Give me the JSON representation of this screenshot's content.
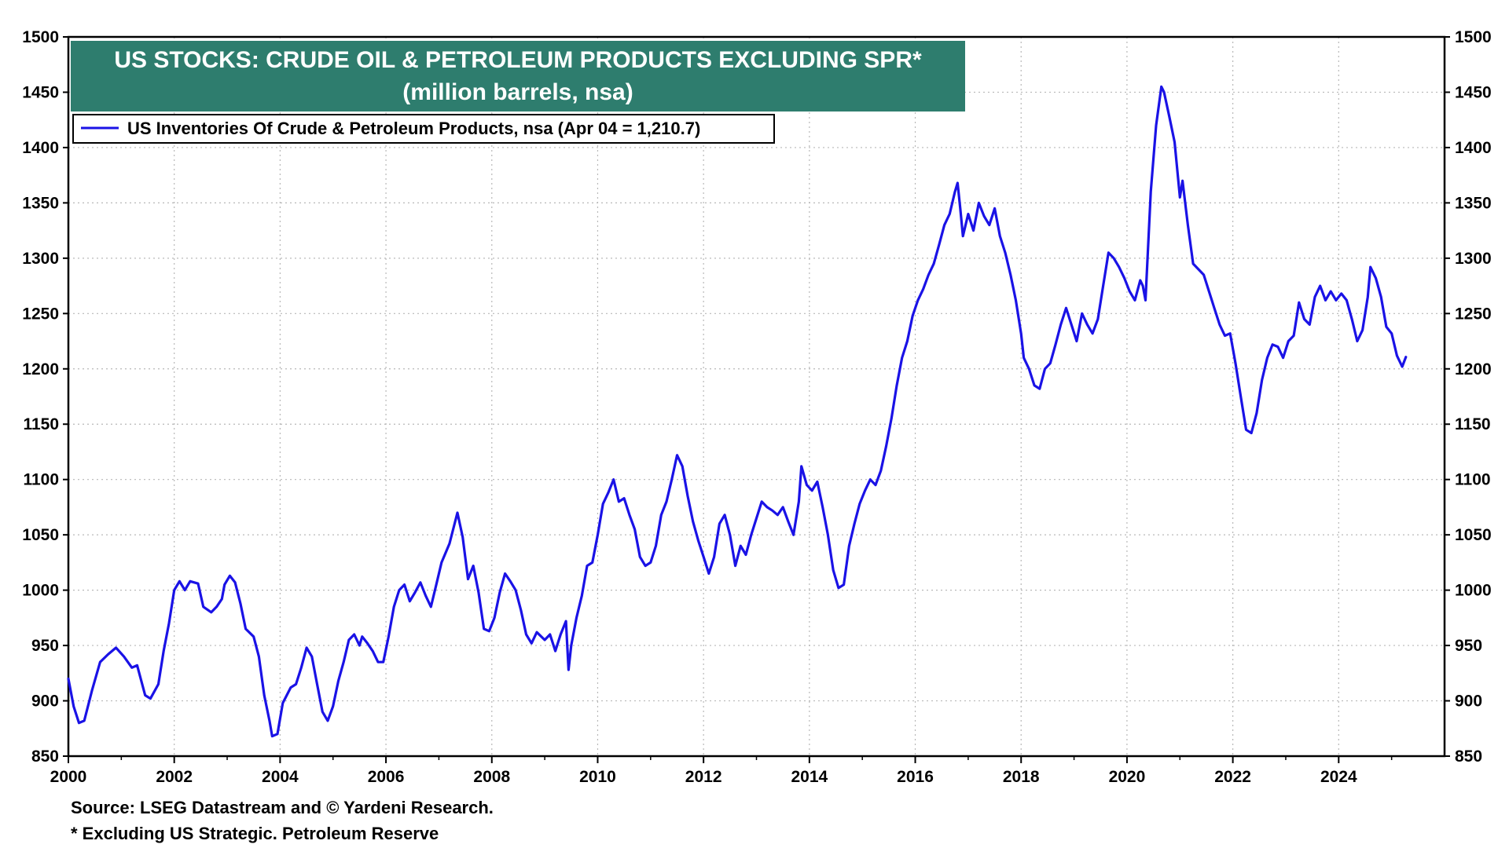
{
  "chart_data": {
    "type": "line",
    "title": "US STOCKS: CRUDE OIL & PETROLEUM PRODUCTS EXCLUDING SPR*",
    "subtitle": "(million barrels, nsa)",
    "xlabel": "",
    "ylabel": "",
    "xlim": [
      2000,
      2026
    ],
    "ylim": [
      850,
      1500
    ],
    "x_ticks": [
      "2000",
      "2002",
      "2004",
      "2006",
      "2008",
      "2010",
      "2012",
      "2014",
      "2016",
      "2018",
      "2020",
      "2022",
      "2024"
    ],
    "y_ticks": [
      "850",
      "900",
      "950",
      "1000",
      "1050",
      "1100",
      "1150",
      "1200",
      "1250",
      "1300",
      "1350",
      "1400",
      "1450",
      "1500"
    ],
    "grid": true,
    "legend_position": "top-left",
    "series": [
      {
        "name": "US Inventories Of Crude & Petroleum Products, nsa (Apr 04 = 1,210.7)",
        "color": "#1a12e6",
        "points": [
          [
            2000.0,
            920
          ],
          [
            2000.1,
            895
          ],
          [
            2000.2,
            880
          ],
          [
            2000.3,
            882
          ],
          [
            2000.45,
            910
          ],
          [
            2000.6,
            935
          ],
          [
            2000.75,
            942
          ],
          [
            2000.9,
            948
          ],
          [
            2001.05,
            940
          ],
          [
            2001.2,
            930
          ],
          [
            2001.3,
            932
          ],
          [
            2001.45,
            905
          ],
          [
            2001.55,
            902
          ],
          [
            2001.7,
            915
          ],
          [
            2001.8,
            945
          ],
          [
            2001.9,
            970
          ],
          [
            2002.0,
            1000
          ],
          [
            2002.1,
            1008
          ],
          [
            2002.2,
            1000
          ],
          [
            2002.3,
            1008
          ],
          [
            2002.45,
            1006
          ],
          [
            2002.55,
            985
          ],
          [
            2002.7,
            980
          ],
          [
            2002.8,
            985
          ],
          [
            2002.9,
            992
          ],
          [
            2002.95,
            1005
          ],
          [
            2003.05,
            1013
          ],
          [
            2003.15,
            1007
          ],
          [
            2003.25,
            988
          ],
          [
            2003.35,
            965
          ],
          [
            2003.5,
            958
          ],
          [
            2003.6,
            940
          ],
          [
            2003.7,
            905
          ],
          [
            2003.8,
            882
          ],
          [
            2003.85,
            868
          ],
          [
            2003.95,
            870
          ],
          [
            2004.05,
            898
          ],
          [
            2004.2,
            912
          ],
          [
            2004.3,
            915
          ],
          [
            2004.4,
            930
          ],
          [
            2004.5,
            948
          ],
          [
            2004.6,
            940
          ],
          [
            2004.7,
            915
          ],
          [
            2004.8,
            890
          ],
          [
            2004.9,
            882
          ],
          [
            2005.0,
            895
          ],
          [
            2005.1,
            918
          ],
          [
            2005.2,
            935
          ],
          [
            2005.3,
            955
          ],
          [
            2005.4,
            960
          ],
          [
            2005.5,
            950
          ],
          [
            2005.55,
            958
          ],
          [
            2005.65,
            952
          ],
          [
            2005.75,
            945
          ],
          [
            2005.85,
            935
          ],
          [
            2005.95,
            935
          ],
          [
            2006.05,
            958
          ],
          [
            2006.15,
            985
          ],
          [
            2006.25,
            1000
          ],
          [
            2006.35,
            1005
          ],
          [
            2006.45,
            990
          ],
          [
            2006.55,
            998
          ],
          [
            2006.65,
            1007
          ],
          [
            2006.75,
            995
          ],
          [
            2006.85,
            985
          ],
          [
            2006.95,
            1005
          ],
          [
            2007.05,
            1025
          ],
          [
            2007.2,
            1042
          ],
          [
            2007.35,
            1070
          ],
          [
            2007.45,
            1048
          ],
          [
            2007.55,
            1010
          ],
          [
            2007.65,
            1022
          ],
          [
            2007.75,
            998
          ],
          [
            2007.85,
            965
          ],
          [
            2007.95,
            963
          ],
          [
            2008.05,
            975
          ],
          [
            2008.15,
            998
          ],
          [
            2008.25,
            1015
          ],
          [
            2008.35,
            1008
          ],
          [
            2008.45,
            1000
          ],
          [
            2008.55,
            982
          ],
          [
            2008.65,
            960
          ],
          [
            2008.75,
            952
          ],
          [
            2008.85,
            962
          ],
          [
            2009.0,
            955
          ],
          [
            2009.1,
            960
          ],
          [
            2009.2,
            945
          ],
          [
            2009.3,
            960
          ],
          [
            2009.4,
            972
          ],
          [
            2009.45,
            928
          ],
          [
            2009.5,
            950
          ],
          [
            2009.6,
            975
          ],
          [
            2009.7,
            995
          ],
          [
            2009.8,
            1022
          ],
          [
            2009.9,
            1025
          ],
          [
            2010.0,
            1050
          ],
          [
            2010.1,
            1078
          ],
          [
            2010.2,
            1088
          ],
          [
            2010.3,
            1100
          ],
          [
            2010.4,
            1080
          ],
          [
            2010.5,
            1083
          ],
          [
            2010.6,
            1068
          ],
          [
            2010.7,
            1055
          ],
          [
            2010.8,
            1030
          ],
          [
            2010.9,
            1022
          ],
          [
            2011.0,
            1025
          ],
          [
            2011.1,
            1040
          ],
          [
            2011.2,
            1068
          ],
          [
            2011.3,
            1080
          ],
          [
            2011.4,
            1100
          ],
          [
            2011.5,
            1122
          ],
          [
            2011.6,
            1112
          ],
          [
            2011.7,
            1085
          ],
          [
            2011.8,
            1062
          ],
          [
            2011.9,
            1045
          ],
          [
            2012.0,
            1030
          ],
          [
            2012.1,
            1015
          ],
          [
            2012.2,
            1030
          ],
          [
            2012.3,
            1060
          ],
          [
            2012.4,
            1068
          ],
          [
            2012.5,
            1050
          ],
          [
            2012.6,
            1022
          ],
          [
            2012.7,
            1040
          ],
          [
            2012.8,
            1032
          ],
          [
            2012.9,
            1050
          ],
          [
            2013.0,
            1065
          ],
          [
            2013.1,
            1080
          ],
          [
            2013.2,
            1075
          ],
          [
            2013.3,
            1072
          ],
          [
            2013.4,
            1068
          ],
          [
            2013.5,
            1075
          ],
          [
            2013.6,
            1062
          ],
          [
            2013.7,
            1050
          ],
          [
            2013.8,
            1080
          ],
          [
            2013.85,
            1112
          ],
          [
            2013.95,
            1095
          ],
          [
            2014.05,
            1090
          ],
          [
            2014.15,
            1098
          ],
          [
            2014.25,
            1075
          ],
          [
            2014.35,
            1050
          ],
          [
            2014.45,
            1018
          ],
          [
            2014.55,
            1002
          ],
          [
            2014.65,
            1005
          ],
          [
            2014.75,
            1040
          ],
          [
            2014.85,
            1060
          ],
          [
            2014.95,
            1078
          ],
          [
            2015.05,
            1090
          ],
          [
            2015.15,
            1100
          ],
          [
            2015.25,
            1095
          ],
          [
            2015.35,
            1108
          ],
          [
            2015.45,
            1130
          ],
          [
            2015.55,
            1155
          ],
          [
            2015.65,
            1185
          ],
          [
            2015.75,
            1210
          ],
          [
            2015.85,
            1225
          ],
          [
            2015.95,
            1248
          ],
          [
            2016.05,
            1262
          ],
          [
            2016.15,
            1272
          ],
          [
            2016.25,
            1285
          ],
          [
            2016.35,
            1295
          ],
          [
            2016.45,
            1312
          ],
          [
            2016.55,
            1330
          ],
          [
            2016.65,
            1340
          ],
          [
            2016.75,
            1360
          ],
          [
            2016.8,
            1368
          ],
          [
            2016.85,
            1345
          ],
          [
            2016.9,
            1320
          ],
          [
            2017.0,
            1340
          ],
          [
            2017.1,
            1325
          ],
          [
            2017.2,
            1350
          ],
          [
            2017.3,
            1338
          ],
          [
            2017.4,
            1330
          ],
          [
            2017.5,
            1345
          ],
          [
            2017.6,
            1320
          ],
          [
            2017.7,
            1305
          ],
          [
            2017.8,
            1285
          ],
          [
            2017.9,
            1262
          ],
          [
            2018.0,
            1232
          ],
          [
            2018.05,
            1210
          ],
          [
            2018.15,
            1200
          ],
          [
            2018.25,
            1185
          ],
          [
            2018.35,
            1182
          ],
          [
            2018.45,
            1200
          ],
          [
            2018.55,
            1205
          ],
          [
            2018.65,
            1222
          ],
          [
            2018.75,
            1240
          ],
          [
            2018.85,
            1255
          ],
          [
            2018.95,
            1240
          ],
          [
            2019.05,
            1225
          ],
          [
            2019.15,
            1250
          ],
          [
            2019.25,
            1240
          ],
          [
            2019.35,
            1232
          ],
          [
            2019.45,
            1245
          ],
          [
            2019.55,
            1275
          ],
          [
            2019.65,
            1305
          ],
          [
            2019.75,
            1300
          ],
          [
            2019.85,
            1292
          ],
          [
            2019.95,
            1282
          ],
          [
            2020.05,
            1270
          ],
          [
            2020.15,
            1262
          ],
          [
            2020.25,
            1280
          ],
          [
            2020.3,
            1275
          ],
          [
            2020.35,
            1262
          ],
          [
            2020.45,
            1360
          ],
          [
            2020.55,
            1420
          ],
          [
            2020.65,
            1455
          ],
          [
            2020.7,
            1450
          ],
          [
            2020.8,
            1428
          ],
          [
            2020.9,
            1405
          ],
          [
            2021.0,
            1355
          ],
          [
            2021.05,
            1370
          ],
          [
            2021.15,
            1330
          ],
          [
            2021.25,
            1295
          ],
          [
            2021.35,
            1290
          ],
          [
            2021.45,
            1285
          ],
          [
            2021.55,
            1270
          ],
          [
            2021.65,
            1255
          ],
          [
            2021.75,
            1240
          ],
          [
            2021.85,
            1230
          ],
          [
            2021.95,
            1232
          ],
          [
            2022.05,
            1205
          ],
          [
            2022.15,
            1175
          ],
          [
            2022.25,
            1145
          ],
          [
            2022.35,
            1142
          ],
          [
            2022.45,
            1160
          ],
          [
            2022.55,
            1190
          ],
          [
            2022.65,
            1210
          ],
          [
            2022.75,
            1222
          ],
          [
            2022.85,
            1220
          ],
          [
            2022.95,
            1210
          ],
          [
            2023.05,
            1225
          ],
          [
            2023.15,
            1230
          ],
          [
            2023.25,
            1260
          ],
          [
            2023.35,
            1245
          ],
          [
            2023.45,
            1240
          ],
          [
            2023.55,
            1265
          ],
          [
            2023.65,
            1275
          ],
          [
            2023.75,
            1262
          ],
          [
            2023.85,
            1270
          ],
          [
            2023.95,
            1262
          ],
          [
            2024.05,
            1268
          ],
          [
            2024.15,
            1262
          ],
          [
            2024.25,
            1245
          ],
          [
            2024.35,
            1225
          ],
          [
            2024.45,
            1235
          ],
          [
            2024.55,
            1265
          ],
          [
            2024.6,
            1292
          ],
          [
            2024.7,
            1282
          ],
          [
            2024.8,
            1265
          ],
          [
            2024.9,
            1238
          ],
          [
            2025.0,
            1232
          ],
          [
            2025.1,
            1212
          ],
          [
            2025.2,
            1202
          ],
          [
            2025.27,
            1210.7
          ]
        ]
      }
    ],
    "source": "Source: LSEG Datastream and © Yardeni Research.",
    "footnote": "* Excluding US Strategic. Petroleum Reserve",
    "title_bg": "#2e7d6e"
  }
}
